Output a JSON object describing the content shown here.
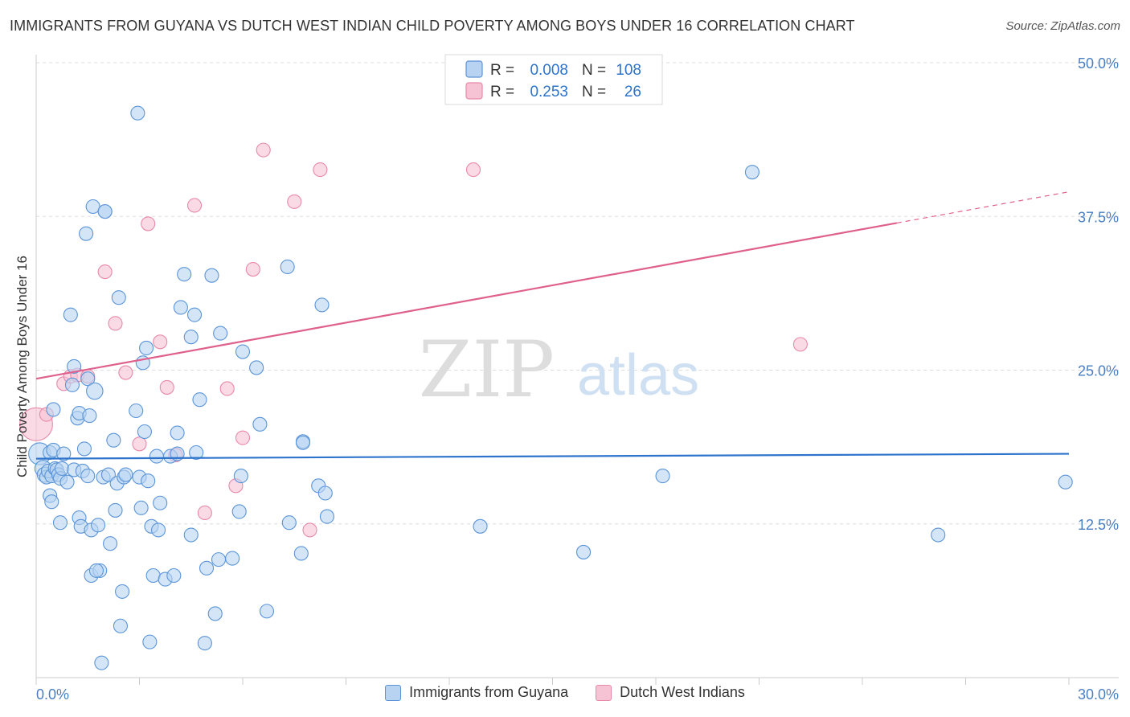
{
  "title": "IMMIGRANTS FROM GUYANA VS DUTCH WEST INDIAN CHILD POVERTY AMONG BOYS UNDER 16 CORRELATION CHART",
  "source": "Source: ZipAtlas.com",
  "watermark": {
    "zip": "ZIP",
    "atlas": "atlas"
  },
  "colors": {
    "blue": "#5b95d8",
    "blue_fill": "#b8d3f2",
    "blue_line": "#2e74cc",
    "pink": "#e889a8",
    "pink_fill": "#f6c3d4",
    "pink_line": "#e0608d",
    "grid": "#dddddd",
    "axis_text": "#4a7fc1"
  },
  "legend": {
    "rows": [
      {
        "r_label": "R = ",
        "r_value": "0.008",
        "n_label": "N = ",
        "n_value": "108",
        "series": "blue"
      },
      {
        "r_label": "R = ",
        "r_value": "0.253",
        "n_label": "N = ",
        "n_value": "26",
        "series": "pink"
      }
    ]
  },
  "bottom_legend": [
    "Immigrants from Guyana",
    "Dutch West Indians"
  ],
  "chart_data": {
    "type": "scatter",
    "title": "IMMIGRANTS FROM GUYANA VS DUTCH WEST INDIAN CHILD POVERTY AMONG BOYS UNDER 16 CORRELATION CHART",
    "xlabel": "",
    "ylabel": "Child Poverty Among Boys Under 16",
    "xlim": [
      0,
      30
    ],
    "ylim": [
      0,
      50
    ],
    "x_tick_labels": [
      "0.0%",
      "30.0%"
    ],
    "y_ticks": [
      12.5,
      25.0,
      37.5,
      50.0
    ],
    "y_tick_labels": [
      "12.5%",
      "25.0%",
      "37.5%",
      "50.0%"
    ],
    "series": [
      {
        "name": "Immigrants from Guyana",
        "color": "blue",
        "r": 0.008,
        "n": 108,
        "trend": {
          "x": [
            0,
            30
          ],
          "y": [
            17.8,
            18.2
          ],
          "dashed_from": null
        },
        "points": [
          [
            0.1,
            18.2,
            1.6
          ],
          [
            0.2,
            17.0,
            1.2
          ],
          [
            0.25,
            16.5,
            1.1
          ],
          [
            0.3,
            16.3,
            1.0
          ],
          [
            0.35,
            16.8,
            1.0
          ],
          [
            0.4,
            18.3,
            1.0
          ],
          [
            0.45,
            16.4,
            1.0
          ],
          [
            0.5,
            21.8,
            1.0
          ],
          [
            0.5,
            18.5,
            1.0
          ],
          [
            0.55,
            17.0,
            1.0
          ],
          [
            0.6,
            16.9,
            1.0
          ],
          [
            0.65,
            16.5,
            1.0
          ],
          [
            0.7,
            16.2,
            1.0
          ],
          [
            0.4,
            14.8,
            1.0
          ],
          [
            0.45,
            14.3,
            1.0
          ],
          [
            0.7,
            12.6,
            1.0
          ],
          [
            0.75,
            17.0,
            1.0
          ],
          [
            0.8,
            18.2,
            1.0
          ],
          [
            0.9,
            15.9,
            1.0
          ],
          [
            1.0,
            29.5,
            1.0
          ],
          [
            1.05,
            23.8,
            1.0
          ],
          [
            1.1,
            25.3,
            1.0
          ],
          [
            1.1,
            16.9,
            1.0
          ],
          [
            1.2,
            21.1,
            1.0
          ],
          [
            1.25,
            21.5,
            1.0
          ],
          [
            1.25,
            13.0,
            1.0
          ],
          [
            1.3,
            12.3,
            1.0
          ],
          [
            1.35,
            16.8,
            1.0
          ],
          [
            1.4,
            18.6,
            1.0
          ],
          [
            1.45,
            36.1,
            1.0
          ],
          [
            1.5,
            24.3,
            1.0
          ],
          [
            1.5,
            16.4,
            1.0
          ],
          [
            1.55,
            21.3,
            1.0
          ],
          [
            1.6,
            12.0,
            1.0
          ],
          [
            1.6,
            8.3,
            1.0
          ],
          [
            1.65,
            38.3,
            1.0
          ],
          [
            1.7,
            23.3,
            1.2
          ],
          [
            1.8,
            12.4,
            1.0
          ],
          [
            1.85,
            8.7,
            1.0
          ],
          [
            1.75,
            8.7,
            1.0
          ],
          [
            1.9,
            1.2,
            1.0
          ],
          [
            1.95,
            16.3,
            1.0
          ],
          [
            2.0,
            37.9,
            1.0
          ],
          [
            2.1,
            16.5,
            1.0
          ],
          [
            2.15,
            10.9,
            1.0
          ],
          [
            2.25,
            19.3,
            1.0
          ],
          [
            2.3,
            13.6,
            1.0
          ],
          [
            2.35,
            15.8,
            1.0
          ],
          [
            2.4,
            30.9,
            1.0
          ],
          [
            2.45,
            4.2,
            1.0
          ],
          [
            2.5,
            7.0,
            1.0
          ],
          [
            2.55,
            16.3,
            1.0
          ],
          [
            2.6,
            16.5,
            1.0
          ],
          [
            2.9,
            21.7,
            1.0
          ],
          [
            2.95,
            45.9,
            1.0
          ],
          [
            3.0,
            16.3,
            1.0
          ],
          [
            3.05,
            13.8,
            1.0
          ],
          [
            3.1,
            25.6,
            1.0
          ],
          [
            3.15,
            20.0,
            1.0
          ],
          [
            3.2,
            26.8,
            1.0
          ],
          [
            3.25,
            16.0,
            1.0
          ],
          [
            3.3,
            2.9,
            1.0
          ],
          [
            3.35,
            12.3,
            1.0
          ],
          [
            3.4,
            8.3,
            1.0
          ],
          [
            3.5,
            18.0,
            1.0
          ],
          [
            3.55,
            12.0,
            1.0
          ],
          [
            3.6,
            14.2,
            1.0
          ],
          [
            3.75,
            8.0,
            1.0
          ],
          [
            3.9,
            18.0,
            1.0
          ],
          [
            4.0,
            8.3,
            1.0
          ],
          [
            4.1,
            18.2,
            1.0
          ],
          [
            4.1,
            19.9,
            1.0
          ],
          [
            4.2,
            30.1,
            1.0
          ],
          [
            4.3,
            32.8,
            1.0
          ],
          [
            4.5,
            27.7,
            1.0
          ],
          [
            4.5,
            11.6,
            1.0
          ],
          [
            4.6,
            29.5,
            1.0
          ],
          [
            4.65,
            18.3,
            1.0
          ],
          [
            4.75,
            22.6,
            1.0
          ],
          [
            4.9,
            2.8,
            1.0
          ],
          [
            4.95,
            8.9,
            1.0
          ],
          [
            5.1,
            32.7,
            1.0
          ],
          [
            5.2,
            5.2,
            1.0
          ],
          [
            5.3,
            9.6,
            1.0
          ],
          [
            5.35,
            28.0,
            1.0
          ],
          [
            5.7,
            9.7,
            1.0
          ],
          [
            5.9,
            13.5,
            1.0
          ],
          [
            5.95,
            16.4,
            1.0
          ],
          [
            6.0,
            26.5,
            1.0
          ],
          [
            6.4,
            25.2,
            1.0
          ],
          [
            6.5,
            20.6,
            1.0
          ],
          [
            6.7,
            5.4,
            1.0
          ],
          [
            7.3,
            33.4,
            1.0
          ],
          [
            7.35,
            12.6,
            1.0
          ],
          [
            7.7,
            10.1,
            1.0
          ],
          [
            7.75,
            19.2,
            1.0
          ],
          [
            8.2,
            15.6,
            1.0
          ],
          [
            8.3,
            30.3,
            1.0
          ],
          [
            8.4,
            15.0,
            1.0
          ],
          [
            8.45,
            13.1,
            1.0
          ],
          [
            12.9,
            12.3,
            1.0
          ],
          [
            15.9,
            10.2,
            1.0
          ],
          [
            18.2,
            16.4,
            1.0
          ],
          [
            20.8,
            41.1,
            1.0
          ],
          [
            26.2,
            11.6,
            1.0
          ],
          [
            29.9,
            15.9,
            1.0
          ],
          [
            7.75,
            19.1,
            1.0
          ],
          [
            2.0,
            37.9,
            1.0
          ]
        ]
      },
      {
        "name": "Dutch West Indians",
        "color": "pink",
        "r": 0.253,
        "n": 26,
        "trend": {
          "x": [
            0,
            30
          ],
          "y": [
            24.3,
            39.5
          ],
          "dashed_from": 25
        },
        "points": [
          [
            0.0,
            20.6,
            2.4
          ],
          [
            0.3,
            21.4,
            1.0
          ],
          [
            0.8,
            23.9,
            1.0
          ],
          [
            1.0,
            24.5,
            1.0
          ],
          [
            1.2,
            24.6,
            1.0
          ],
          [
            1.5,
            24.5,
            1.0
          ],
          [
            2.0,
            33.0,
            1.0
          ],
          [
            2.3,
            28.8,
            1.0
          ],
          [
            2.6,
            24.8,
            1.0
          ],
          [
            3.0,
            19.0,
            1.0
          ],
          [
            3.25,
            36.9,
            1.0
          ],
          [
            3.6,
            27.3,
            1.0
          ],
          [
            3.8,
            23.6,
            1.0
          ],
          [
            4.05,
            18.1,
            1.0
          ],
          [
            4.6,
            38.4,
            1.0
          ],
          [
            4.9,
            13.4,
            1.0
          ],
          [
            5.55,
            23.5,
            1.0
          ],
          [
            5.8,
            15.6,
            1.0
          ],
          [
            6.0,
            19.5,
            1.0
          ],
          [
            6.3,
            33.2,
            1.0
          ],
          [
            6.6,
            42.9,
            1.0
          ],
          [
            7.5,
            38.7,
            1.0
          ],
          [
            7.95,
            12.0,
            1.0
          ],
          [
            8.25,
            41.3,
            1.0
          ],
          [
            12.7,
            41.3,
            1.0
          ],
          [
            22.2,
            27.1,
            1.0
          ]
        ]
      }
    ]
  }
}
